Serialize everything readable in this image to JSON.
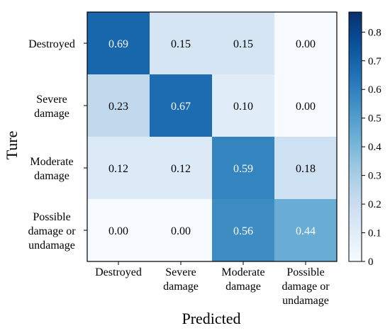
{
  "chart_data": {
    "type": "heatmap",
    "title": "",
    "xlabel": "Predicted",
    "ylabel": "Ture",
    "rows": [
      [
        "Destroyed"
      ],
      [
        "Severe",
        "damage"
      ],
      [
        "Moderate",
        "damage"
      ],
      [
        "Possible",
        "damage or",
        "undamage"
      ]
    ],
    "columns": [
      [
        "Destroyed"
      ],
      [
        "Severe",
        "damage"
      ],
      [
        "Moderate",
        "damage"
      ],
      [
        "Possible",
        "damage or",
        "undamage"
      ]
    ],
    "values": [
      [
        0.69,
        0.15,
        0.15,
        0.0
      ],
      [
        0.23,
        0.67,
        0.1,
        0.0
      ],
      [
        0.12,
        0.12,
        0.59,
        0.18
      ],
      [
        0.0,
        0.0,
        0.56,
        0.44
      ]
    ],
    "value_labels": [
      [
        "0.69",
        "0.15",
        "0.15",
        "0.00"
      ],
      [
        "0.23",
        "0.67",
        "0.10",
        "0.00"
      ],
      [
        "0.12",
        "0.12",
        "0.59",
        "0.18"
      ],
      [
        "0.00",
        "0.00",
        "0.56",
        "0.44"
      ]
    ],
    "colorbar": {
      "min": 0,
      "max": 0.87,
      "ticks": [
        0,
        0.1,
        0.2,
        0.3,
        0.4,
        0.5,
        0.6,
        0.7,
        0.8
      ],
      "tick_labels": [
        "0",
        "0.1",
        "0.2",
        "0.3",
        "0.4",
        "0.5",
        "0.6",
        "0.7",
        "0.8"
      ]
    },
    "colormap": "Blues",
    "colors": {
      "low": "#f7fbff",
      "high": "#08306b"
    }
  }
}
